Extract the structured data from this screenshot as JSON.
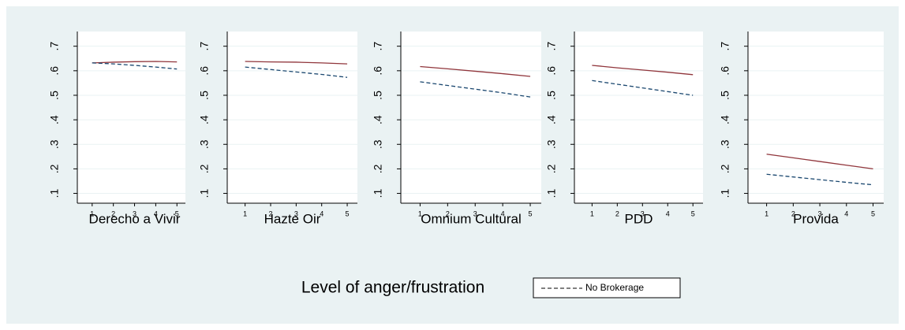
{
  "xlabel": "Level of anger/frustration",
  "chart_data": [
    {
      "type": "line",
      "title": "Derecho a Vivir",
      "x": [
        1,
        2,
        3,
        4,
        5
      ],
      "xlim": [
        0.3,
        5.4
      ],
      "xticks": [
        1,
        2,
        3,
        4,
        5
      ],
      "ylim": [
        0.06,
        0.76
      ],
      "yticks": [
        {
          "value": 0.1,
          "label": ".1"
        },
        {
          "value": 0.2,
          "label": ".2"
        },
        {
          "value": 0.3,
          "label": ".3"
        },
        {
          "value": 0.4,
          "label": ".4"
        },
        {
          "value": 0.5,
          "label": ".5"
        },
        {
          "value": 0.6,
          "label": ".6"
        },
        {
          "value": 0.7,
          "label": ".7"
        }
      ],
      "grid": true,
      "series": [
        {
          "color": "#90353b",
          "dash": false,
          "values": [
            0.632,
            0.635,
            0.637,
            0.638,
            0.636
          ]
        },
        {
          "name": "No Brokerage",
          "color": "#1a476f",
          "dash": true,
          "values": [
            0.632,
            0.628,
            0.622,
            0.615,
            0.607
          ]
        }
      ]
    },
    {
      "type": "line",
      "title": "Hazte Oir",
      "x": [
        1,
        2,
        3,
        4,
        5
      ],
      "xlim": [
        0.3,
        5.4
      ],
      "xticks": [
        1,
        2,
        3,
        4,
        5
      ],
      "ylim": [
        0.06,
        0.76
      ],
      "yticks": [
        {
          "value": 0.1,
          "label": ".1"
        },
        {
          "value": 0.2,
          "label": ".2"
        },
        {
          "value": 0.3,
          "label": ".3"
        },
        {
          "value": 0.4,
          "label": ".4"
        },
        {
          "value": 0.5,
          "label": ".5"
        },
        {
          "value": 0.6,
          "label": ".6"
        },
        {
          "value": 0.7,
          "label": ".7"
        }
      ],
      "grid": true,
      "series": [
        {
          "color": "#90353b",
          "dash": false,
          "values": [
            0.638,
            0.636,
            0.635,
            0.632,
            0.628
          ]
        },
        {
          "name": "No Brokerage",
          "color": "#1a476f",
          "dash": true,
          "values": [
            0.615,
            0.605,
            0.595,
            0.585,
            0.573
          ]
        }
      ]
    },
    {
      "type": "line",
      "title": "Omnium Cultural",
      "x": [
        1,
        2,
        3,
        4,
        5
      ],
      "xlim": [
        0.3,
        5.4
      ],
      "xticks": [
        1,
        2,
        3,
        4,
        5
      ],
      "ylim": [
        0.06,
        0.76
      ],
      "yticks": [
        {
          "value": 0.1,
          "label": ".1"
        },
        {
          "value": 0.2,
          "label": ".2"
        },
        {
          "value": 0.3,
          "label": ".3"
        },
        {
          "value": 0.4,
          "label": ".4"
        },
        {
          "value": 0.5,
          "label": ".5"
        },
        {
          "value": 0.6,
          "label": ".6"
        },
        {
          "value": 0.7,
          "label": ".7"
        }
      ],
      "grid": true,
      "series": [
        {
          "color": "#90353b",
          "dash": false,
          "values": [
            0.617,
            0.608,
            0.598,
            0.588,
            0.577
          ]
        },
        {
          "name": "No Brokerage",
          "color": "#1a476f",
          "dash": true,
          "values": [
            0.555,
            0.54,
            0.525,
            0.51,
            0.493
          ]
        }
      ]
    },
    {
      "type": "line",
      "title": "PDD",
      "x": [
        1,
        2,
        3,
        4,
        5
      ],
      "xlim": [
        0.3,
        5.4
      ],
      "xticks": [
        1,
        2,
        3,
        4,
        5
      ],
      "ylim": [
        0.06,
        0.76
      ],
      "yticks": [
        {
          "value": 0.1,
          "label": ".1"
        },
        {
          "value": 0.2,
          "label": ".2"
        },
        {
          "value": 0.3,
          "label": ".3"
        },
        {
          "value": 0.4,
          "label": ".4"
        },
        {
          "value": 0.5,
          "label": ".5"
        },
        {
          "value": 0.6,
          "label": ".6"
        },
        {
          "value": 0.7,
          "label": ".7"
        }
      ],
      "grid": true,
      "series": [
        {
          "color": "#90353b",
          "dash": false,
          "values": [
            0.622,
            0.612,
            0.603,
            0.594,
            0.584
          ]
        },
        {
          "name": "No Brokerage",
          "color": "#1a476f",
          "dash": true,
          "values": [
            0.56,
            0.545,
            0.53,
            0.515,
            0.5
          ]
        }
      ]
    },
    {
      "type": "line",
      "title": "Provida",
      "x": [
        1,
        2,
        3,
        4,
        5
      ],
      "xlim": [
        0.3,
        5.4
      ],
      "xticks": [
        1,
        2,
        3,
        4,
        5
      ],
      "ylim": [
        0.06,
        0.76
      ],
      "yticks": [
        {
          "value": 0.1,
          "label": ".1"
        },
        {
          "value": 0.2,
          "label": ".2"
        },
        {
          "value": 0.3,
          "label": ".3"
        },
        {
          "value": 0.4,
          "label": ".4"
        },
        {
          "value": 0.5,
          "label": ".5"
        },
        {
          "value": 0.6,
          "label": ".6"
        },
        {
          "value": 0.7,
          "label": ".7"
        }
      ],
      "grid": true,
      "series": [
        {
          "color": "#90353b",
          "dash": false,
          "values": [
            0.26,
            0.245,
            0.23,
            0.215,
            0.2
          ]
        },
        {
          "name": "No Brokerage",
          "color": "#1a476f",
          "dash": true,
          "values": [
            0.178,
            0.167,
            0.156,
            0.145,
            0.135
          ]
        }
      ]
    }
  ]
}
